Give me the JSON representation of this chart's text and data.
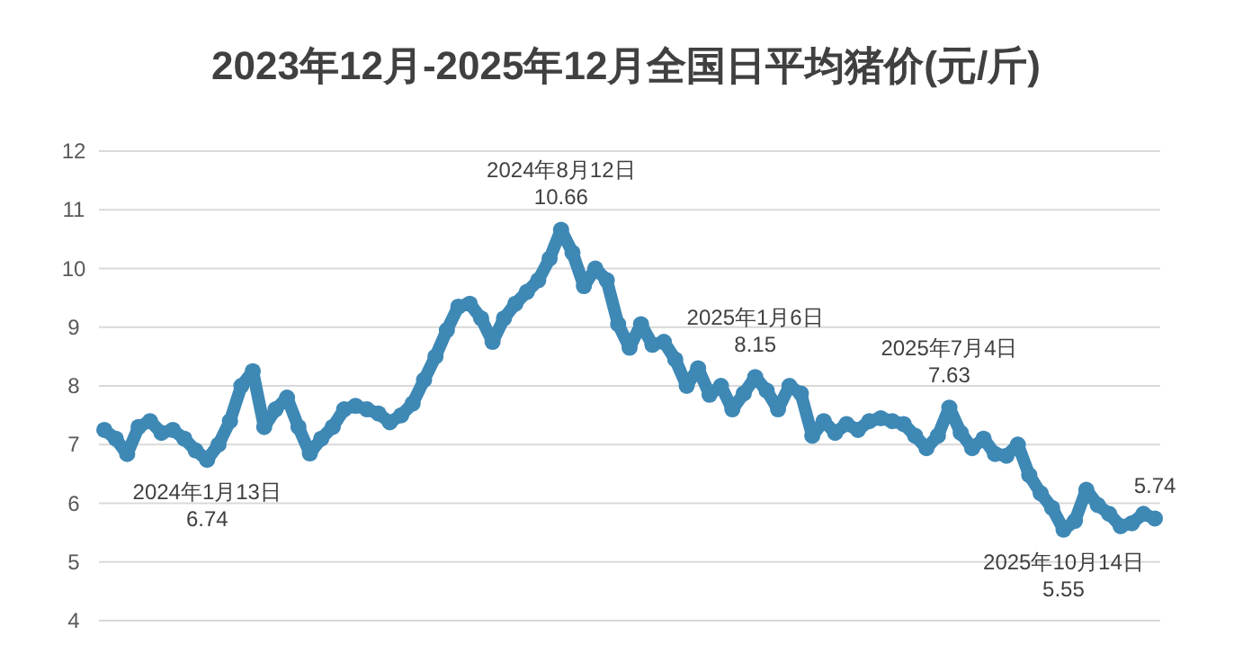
{
  "chart_data": {
    "type": "line",
    "title": "2023年12月-2025年12月全国日平均猪价(元/斤)",
    "categories": [
      null,
      null,
      null,
      null,
      null,
      null,
      null,
      null,
      null,
      null,
      null,
      null,
      null,
      null,
      null,
      null,
      null,
      null,
      null,
      null,
      null,
      null,
      null,
      null,
      null,
      null,
      null,
      null,
      null,
      null,
      null,
      null,
      null,
      null,
      null,
      null,
      null,
      null,
      null,
      null,
      null,
      null,
      null,
      null,
      null,
      null,
      null,
      null,
      null,
      null,
      null,
      null,
      null,
      null,
      null,
      null,
      null,
      null,
      null,
      null,
      null,
      null,
      null,
      null,
      null,
      null,
      null,
      null,
      null,
      null,
      null,
      null,
      null,
      null,
      null,
      null,
      null,
      null,
      null,
      null,
      null,
      null,
      null,
      null,
      null,
      null,
      null,
      null,
      null,
      null,
      null,
      null,
      null
    ],
    "series": [
      {
        "color": "#3e88b5",
        "values": [
          7.25,
          7.1,
          6.84,
          7.3,
          7.4,
          7.2,
          7.25,
          7.1,
          6.9,
          6.74,
          7.0,
          7.4,
          8.0,
          8.25,
          7.3,
          7.6,
          7.8,
          7.3,
          6.85,
          7.1,
          7.3,
          7.6,
          7.66,
          7.6,
          7.53,
          7.38,
          7.5,
          7.7,
          8.1,
          8.5,
          8.95,
          9.35,
          9.4,
          9.15,
          8.75,
          9.15,
          9.4,
          9.6,
          9.8,
          10.17,
          10.66,
          10.27,
          9.7,
          10.0,
          9.8,
          9.05,
          8.65,
          9.05,
          8.7,
          8.75,
          8.45,
          8.0,
          8.3,
          7.85,
          8.0,
          7.6,
          7.87,
          8.15,
          7.92,
          7.6,
          8.0,
          7.87,
          7.15,
          7.4,
          7.2,
          7.35,
          7.25,
          7.4,
          7.45,
          7.4,
          7.35,
          7.15,
          6.94,
          7.15,
          7.63,
          7.2,
          6.94,
          7.1,
          6.84,
          6.81,
          7.0,
          6.48,
          6.17,
          5.92,
          5.55,
          5.7,
          6.23,
          5.97,
          5.82,
          5.61,
          5.66,
          5.82,
          5.74
        ]
      }
    ],
    "ylim": [
      4,
      12
    ],
    "yticks": [
      4,
      5,
      6,
      7,
      8,
      9,
      10,
      11,
      12
    ],
    "grid": "y",
    "tick_labels": "y",
    "marker": "circle",
    "line_style": "solid",
    "annotations": [
      {
        "text": "2024年1月13日\n6.74",
        "y": 6.74
      },
      {
        "text": "2024年8月12日\n10.66",
        "y": 10.66
      },
      {
        "text": "2025年1月6日\n8.15",
        "y": 8.15
      },
      {
        "text": "2025年7月4日\n7.63",
        "y": 7.63
      },
      {
        "text": "2025年10月14日\n5.55",
        "y": 5.55
      },
      {
        "text": "5.74",
        "y": 5.74
      }
    ]
  }
}
